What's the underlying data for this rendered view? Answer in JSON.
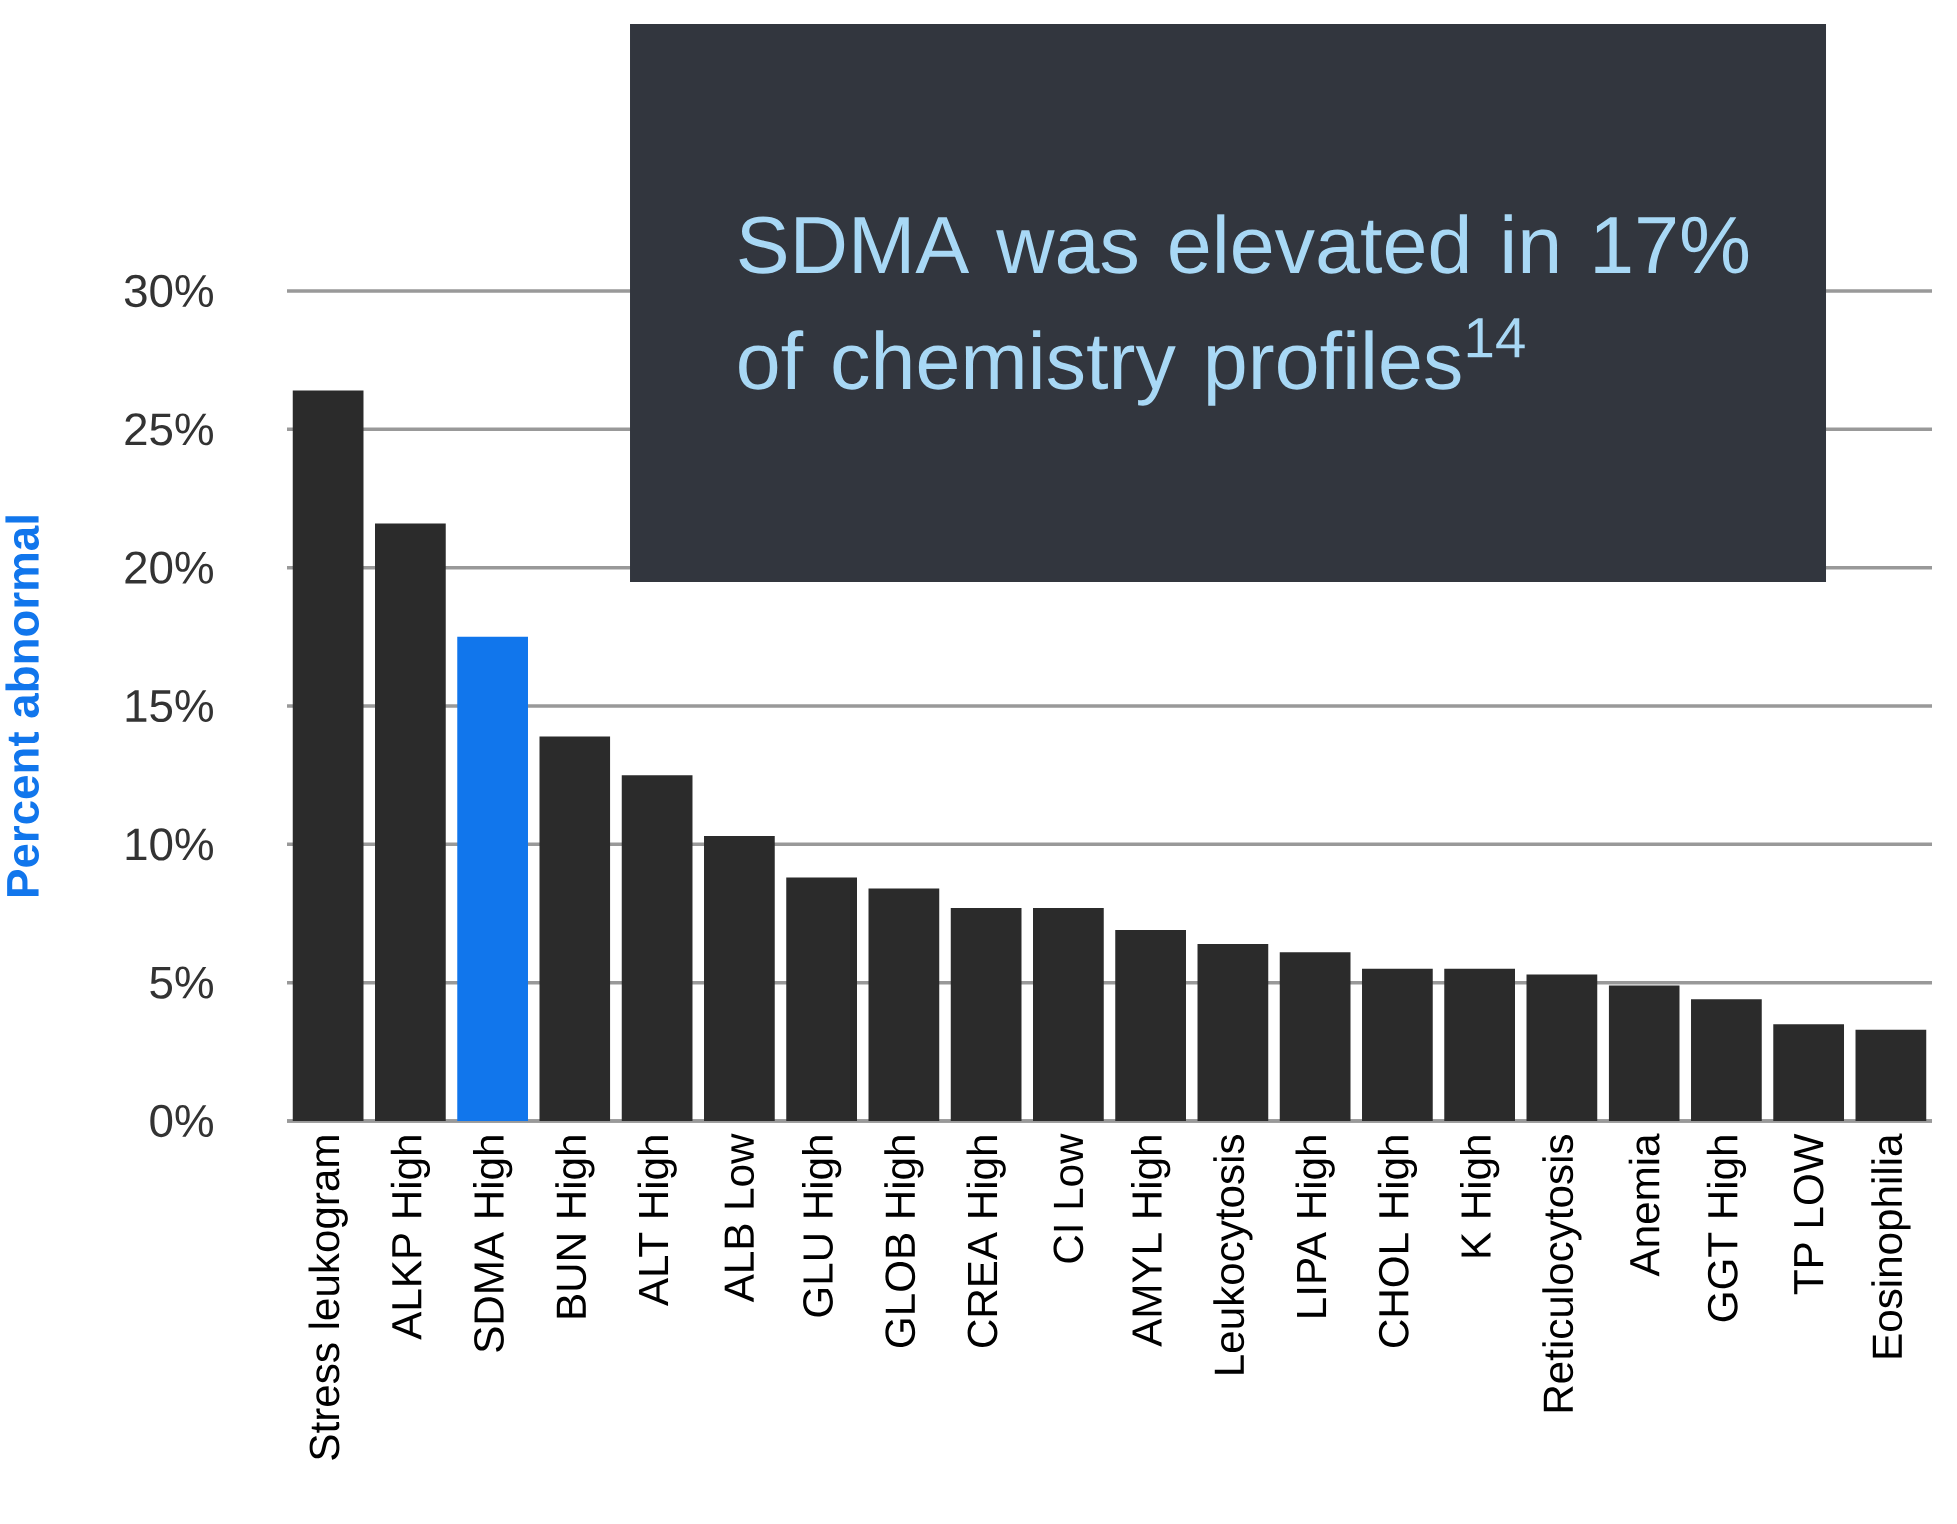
{
  "chart_data": {
    "type": "bar",
    "ylabel": "Percent abnormal",
    "categories": [
      "Stress leukogram",
      "ALKP High",
      "SDMA High",
      "BUN High",
      "ALT High",
      "ALB Low",
      "GLU High",
      "GLOB High",
      "CREA High",
      "CI Low",
      "AMYL High",
      "Leukocytosis",
      "LIPA High",
      "CHOL High",
      "K High",
      "Reticulocytosis",
      "Anemia",
      "GGT High",
      "TP LOW",
      "Eosinophilia"
    ],
    "values": [
      26.4,
      21.6,
      17.5,
      13.9,
      12.5,
      10.3,
      8.8,
      8.4,
      7.7,
      7.7,
      6.9,
      6.4,
      6.1,
      5.5,
      5.5,
      5.3,
      4.9,
      4.4,
      3.5,
      3.3
    ],
    "colors": [
      "#2b2b2b",
      "#2b2b2b",
      "#1176ec",
      "#2b2b2b",
      "#2b2b2b",
      "#2b2b2b",
      "#2b2b2b",
      "#2b2b2b",
      "#2b2b2b",
      "#2b2b2b",
      "#2b2b2b",
      "#2b2b2b",
      "#2b2b2b",
      "#2b2b2b",
      "#2b2b2b",
      "#2b2b2b",
      "#2b2b2b",
      "#2b2b2b",
      "#2b2b2b",
      "#2b2b2b"
    ],
    "ylim": [
      0,
      30
    ],
    "yticks": [
      {
        "value": 0,
        "label": "0%"
      },
      {
        "value": 5,
        "label": "5%"
      },
      {
        "value": 10,
        "label": "10%"
      },
      {
        "value": 15,
        "label": "15%"
      },
      {
        "value": 20,
        "label": "20%"
      },
      {
        "value": 25,
        "label": "25%"
      },
      {
        "value": 30,
        "label": "30%"
      }
    ],
    "grid": "y",
    "annotations": [
      "SDMA was elevated in 17% of chemistry profiles$^{14}$"
    ]
  }
}
